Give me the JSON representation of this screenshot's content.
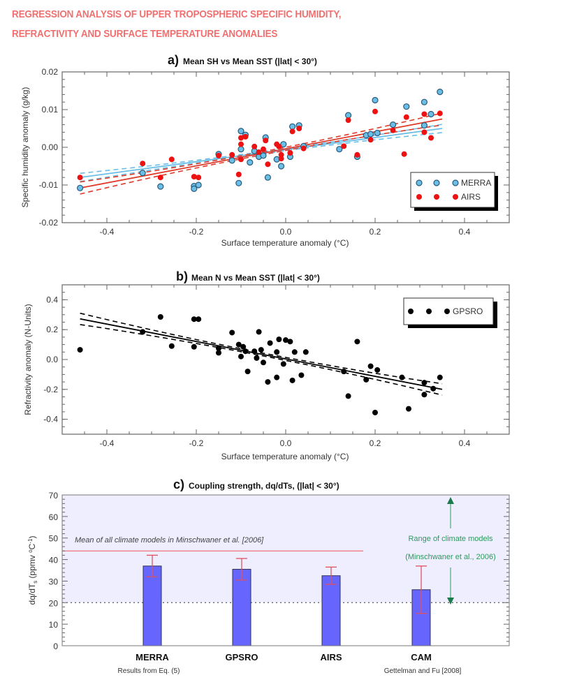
{
  "page": {
    "title_line1": "REGRESSION ANALYSIS OF UPPER TROPOSPHERIC SPECIFIC HUMIDITY,",
    "title_line2": "REFRACTIVITY AND SURFACE TEMPERATURE ANOMALIES",
    "title_color": "#f07070"
  },
  "chart_data": [
    {
      "id": "a",
      "type": "scatter",
      "panel_letter": "a)",
      "title": "Mean SH vs Mean SST (|lat| < 30°)",
      "xlabel": "Surface temperature anomaly (°C)",
      "ylabel": "Specific humidity anomaly (g/kg)",
      "xlim": [
        -0.5,
        0.5
      ],
      "ylim": [
        -0.02,
        0.02
      ],
      "xticks": [
        "-0.4",
        "-0.2",
        "0.0",
        "0.2",
        "0.4"
      ],
      "xtick_values": [
        -0.4,
        -0.2,
        0.0,
        0.2,
        0.4
      ],
      "yticks": [
        "0.02",
        "0.01",
        "0.00",
        "-0.01",
        "-0.02"
      ],
      "ytick_values": [
        0.02,
        0.01,
        0.0,
        -0.01,
        -0.02
      ],
      "grid": false,
      "legend_position": "bottom-right",
      "series": [
        {
          "name": "MERRA",
          "color": "#6bbfe6",
          "edge_color": "#2a5a7a",
          "points": [
            [
              -0.46,
              -0.0108
            ],
            [
              -0.32,
              -0.0068
            ],
            [
              -0.28,
              -0.0104
            ],
            [
              -0.205,
              -0.0103
            ],
            [
              -0.205,
              -0.011
            ],
            [
              -0.195,
              -0.01
            ],
            [
              -0.15,
              -0.0018
            ],
            [
              -0.12,
              -0.0035
            ],
            [
              -0.105,
              -0.0095
            ],
            [
              -0.1,
              -0.0005
            ],
            [
              -0.1,
              0.0043
            ],
            [
              -0.09,
              0.0033
            ],
            [
              -0.08,
              -0.004
            ],
            [
              -0.07,
              -0.001
            ],
            [
              -0.06,
              -0.0025
            ],
            [
              -0.05,
              -0.0022
            ],
            [
              -0.04,
              -0.008
            ],
            [
              -0.045,
              0.0026
            ],
            [
              -0.02,
              -0.0032
            ],
            [
              -0.01,
              -0.005
            ],
            [
              -0.005,
              0.0008
            ],
            [
              0.01,
              -0.0025
            ],
            [
              0.015,
              0.0055
            ],
            [
              0.03,
              0.0058
            ],
            [
              0.04,
              0.0003
            ],
            [
              0.12,
              -0.0005
            ],
            [
              0.14,
              0.0085
            ],
            [
              0.16,
              -0.0025
            ],
            [
              0.18,
              0.0032
            ],
            [
              0.19,
              0.0035
            ],
            [
              0.2,
              0.0125
            ],
            [
              0.205,
              0.0038
            ],
            [
              0.24,
              0.006
            ],
            [
              0.27,
              0.0108
            ],
            [
              0.31,
              0.012
            ],
            [
              0.31,
              0.0058
            ],
            [
              0.325,
              0.0088
            ],
            [
              0.345,
              0.0147
            ]
          ]
        },
        {
          "name": "AIRS",
          "color": "#ee1111",
          "points": [
            [
              -0.46,
              -0.008
            ],
            [
              -0.32,
              -0.0043
            ],
            [
              -0.28,
              -0.008
            ],
            [
              -0.255,
              -0.0032
            ],
            [
              -0.205,
              -0.0078
            ],
            [
              -0.195,
              -0.008
            ],
            [
              -0.15,
              -0.0022
            ],
            [
              -0.12,
              -0.002
            ],
            [
              -0.105,
              -0.0072
            ],
            [
              -0.1,
              0.0008
            ],
            [
              -0.1,
              0.0025
            ],
            [
              -0.09,
              0.0028
            ],
            [
              -0.1,
              -0.0032
            ],
            [
              -0.07,
              0.0002
            ],
            [
              -0.06,
              -0.0013
            ],
            [
              -0.05,
              -0.0005
            ],
            [
              -0.04,
              -0.0045
            ],
            [
              -0.045,
              0.0018
            ],
            [
              -0.02,
              0.0008
            ],
            [
              -0.015,
              0.0002
            ],
            [
              -0.01,
              -0.002
            ],
            [
              -0.01,
              -0.003
            ],
            [
              0.01,
              -0.0015
            ],
            [
              0.015,
              0.0042
            ],
            [
              0.03,
              0.005
            ],
            [
              0.04,
              -0.0003
            ],
            [
              0.13,
              0.0003
            ],
            [
              0.14,
              0.0072
            ],
            [
              0.16,
              -0.002
            ],
            [
              0.19,
              0.002
            ],
            [
              0.2,
              0.0095
            ],
            [
              0.24,
              0.0045
            ],
            [
              0.265,
              -0.0018
            ],
            [
              0.27,
              0.008
            ],
            [
              0.31,
              0.0088
            ],
            [
              0.31,
              0.004
            ],
            [
              0.325,
              0.0025
            ],
            [
              0.345,
              0.009
            ]
          ]
        }
      ],
      "regressions": [
        {
          "series": "MERRA",
          "color": "#6bbfe6",
          "x_range": [
            -0.46,
            0.35
          ],
          "y_at_start": -0.008,
          "y_at_end": 0.005,
          "ci_halfwidth_ends": 0.0011
        },
        {
          "series": "AIRS",
          "color": "#e03a2a",
          "x_range": [
            -0.46,
            0.35
          ],
          "y_at_start": -0.0108,
          "y_at_end": 0.0075,
          "ci_halfwidth_ends": 0.0016
        }
      ]
    },
    {
      "id": "b",
      "type": "scatter",
      "panel_letter": "b)",
      "title": "Mean N vs Mean SST (|lat| < 30°)",
      "xlabel": "Surface temperature anomaly (°C)",
      "ylabel": "Refractivity anomaly (N-Units)",
      "xlim": [
        -0.5,
        0.5
      ],
      "ylim": [
        -0.5,
        0.5
      ],
      "xticks": [
        "-0.4",
        "-0.2",
        "0.0",
        "0.2",
        "0.4"
      ],
      "xtick_values": [
        -0.4,
        -0.2,
        0.0,
        0.2,
        0.4
      ],
      "yticks": [
        "0.4",
        "0.2",
        "0.0",
        "-0.2",
        "-0.4"
      ],
      "ytick_values": [
        0.4,
        0.2,
        0.0,
        -0.2,
        -0.4
      ],
      "grid": false,
      "legend_position": "top-right",
      "series": [
        {
          "name": "GPSRO",
          "color": "#000000",
          "points": [
            [
              -0.46,
              0.065
            ],
            [
              -0.32,
              0.185
            ],
            [
              -0.28,
              0.285
            ],
            [
              -0.255,
              0.09
            ],
            [
              -0.205,
              0.27
            ],
            [
              -0.205,
              0.085
            ],
            [
              -0.195,
              0.27
            ],
            [
              -0.15,
              0.045
            ],
            [
              -0.15,
              0.075
            ],
            [
              -0.12,
              0.18
            ],
            [
              -0.105,
              0.1
            ],
            [
              -0.1,
              0.02
            ],
            [
              -0.095,
              0.085
            ],
            [
              -0.09,
              0.055
            ],
            [
              -0.085,
              -0.08
            ],
            [
              -0.07,
              0.055
            ],
            [
              -0.065,
              0.01
            ],
            [
              -0.06,
              0.185
            ],
            [
              -0.055,
              0.065
            ],
            [
              -0.05,
              -0.02
            ],
            [
              -0.04,
              -0.15
            ],
            [
              -0.035,
              0.11
            ],
            [
              -0.02,
              -0.12
            ],
            [
              -0.02,
              0.05
            ],
            [
              -0.015,
              0.135
            ],
            [
              -0.005,
              -0.03
            ],
            [
              0.0,
              0.13
            ],
            [
              0.01,
              0.12
            ],
            [
              0.015,
              -0.14
            ],
            [
              0.02,
              0.05
            ],
            [
              0.035,
              -0.105
            ],
            [
              0.045,
              0.05
            ],
            [
              0.13,
              -0.08
            ],
            [
              0.14,
              -0.245
            ],
            [
              0.16,
              0.12
            ],
            [
              0.18,
              -0.135
            ],
            [
              0.19,
              -0.045
            ],
            [
              0.2,
              -0.355
            ],
            [
              0.205,
              -0.07
            ],
            [
              0.26,
              -0.12
            ],
            [
              0.275,
              -0.33
            ],
            [
              0.31,
              -0.155
            ],
            [
              0.31,
              -0.235
            ],
            [
              0.33,
              -0.195
            ],
            [
              0.345,
              -0.12
            ]
          ]
        }
      ],
      "regressions": [
        {
          "series": "GPSRO",
          "color": "#000000",
          "x_range": [
            -0.46,
            0.35
          ],
          "y_at_start": 0.272,
          "y_at_end": -0.2,
          "ci_halfwidth_ends": 0.038
        }
      ]
    },
    {
      "id": "c",
      "type": "bar",
      "panel_letter": "c)",
      "title": "Coupling strength, dq/dTs, (|lat| < 30°)",
      "xlabel": "",
      "ylabel": "dq/dTs (ppmv °C⁻¹)",
      "ylim": [
        0,
        70
      ],
      "yticks": [
        "70",
        "60",
        "50",
        "40",
        "30",
        "20",
        "10",
        "0"
      ],
      "ytick_values": [
        70,
        60,
        50,
        40,
        30,
        20,
        10,
        0
      ],
      "grid": false,
      "categories": [
        "MERRA",
        "GPSRO",
        "AIRS",
        "CAM"
      ],
      "values": [
        37,
        35.5,
        32.5,
        26
      ],
      "error_low": [
        32,
        30.5,
        28.5,
        15
      ],
      "error_high": [
        42,
        40.5,
        36.5,
        37
      ],
      "bar_color": "#6666ff",
      "error_color": "#e05060",
      "group_labels": [
        {
          "text": "Results from Eq. (5)",
          "under": [
            "GPSRO"
          ]
        },
        {
          "text": "Gettelman and Fu [2008]",
          "under": [
            "CAM"
          ]
        }
      ],
      "model_range": [
        20,
        70
      ],
      "model_range_color": "#eeeeff",
      "model_mean": 44,
      "model_mean_color": "#f07080",
      "model_mean_label": "Mean of all climate models in Minschwaner et al. [2006]",
      "range_label_line1": "Range of climate models",
      "range_label_line2": "(Minschwaner et al., 2006)",
      "range_label_color": "#2a9a5a"
    }
  ]
}
